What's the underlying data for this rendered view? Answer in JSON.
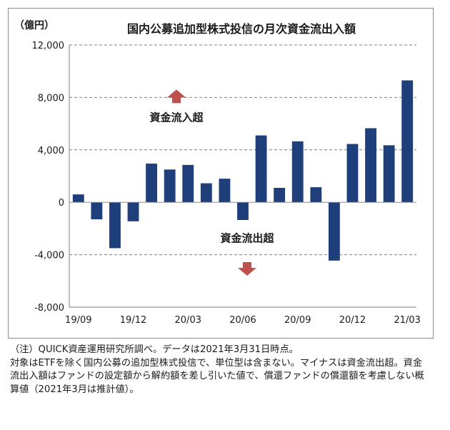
{
  "chart_data": {
    "type": "bar",
    "title": "国内公募追加型株式投信の月次資金流出入額",
    "unit_label": "（億円）",
    "ylim": [
      -8000,
      12000
    ],
    "yticks": [
      12000,
      8000,
      4000,
      0,
      -4000,
      -8000
    ],
    "ytick_labels": [
      "12,000",
      "8,000",
      "4,000",
      "0",
      "-4,000",
      "-8,000"
    ],
    "grid": "dashed horizontal",
    "x_tick_labels": [
      "19/09",
      "19/12",
      "20/03",
      "20/06",
      "20/09",
      "20/12",
      "21/03"
    ],
    "categories": [
      "19/09",
      "19/10",
      "19/11",
      "19/12",
      "20/01",
      "20/02",
      "20/03",
      "20/04",
      "20/05",
      "20/06",
      "20/07",
      "20/08",
      "20/09",
      "20/10",
      "20/11",
      "20/12",
      "21/01",
      "21/02",
      "21/03"
    ],
    "values": [
      600,
      -1300,
      -3500,
      -1450,
      2950,
      2500,
      2850,
      1450,
      1800,
      -1350,
      5100,
      1100,
      4650,
      1150,
      -4450,
      4450,
      5650,
      4350,
      9300
    ],
    "bar_color": "#1f3f7a",
    "arrow_color": "#c0504d",
    "annotations": {
      "inflow": "資金流入超",
      "outflow": "資金流出超"
    }
  },
  "note": "（注）QUICK資産運用研究所調べ。データは2021年3月31日時点。\n対象はETFを除く国内公募の追加型株式投信で、単位型は含まない。マイナスは資金流出超。資金流出入額はファンドの設定額から解約額を差し引いた値で、償還ファンドの償還額を考慮しない概算値（2021年3月は推計値）。"
}
